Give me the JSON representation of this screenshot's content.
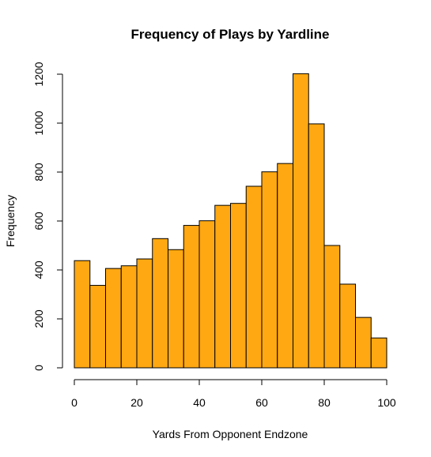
{
  "chart_data": {
    "type": "bar",
    "title": "Frequency of Plays by Yardline",
    "xlabel": "Yards From Opponent Endzone",
    "ylabel": "Frequency",
    "bar_color": "#FFA812",
    "bin_edges": [
      0,
      5,
      10,
      15,
      20,
      25,
      30,
      35,
      40,
      45,
      50,
      55,
      60,
      65,
      70,
      75,
      80,
      85,
      90,
      95,
      100
    ],
    "values": [
      438,
      337,
      406,
      417,
      445,
      528,
      483,
      582,
      601,
      664,
      672,
      742,
      801,
      835,
      1202,
      997,
      500,
      342,
      206,
      122
    ],
    "xlim": [
      0,
      100
    ],
    "ylim": [
      0,
      1200
    ],
    "xticks": [
      0,
      20,
      40,
      60,
      80,
      100
    ],
    "yticks": [
      0,
      200,
      400,
      600,
      800,
      1000,
      1200
    ],
    "grid": false,
    "legend": "none"
  }
}
